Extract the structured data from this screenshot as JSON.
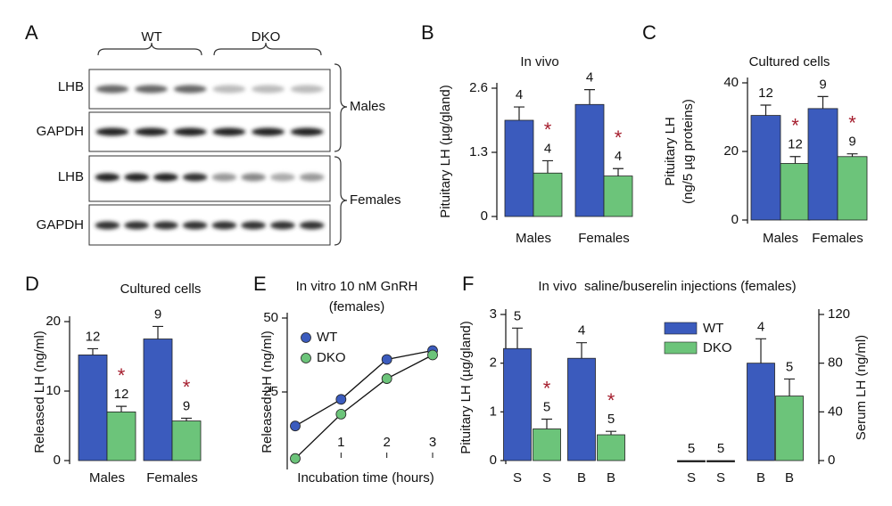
{
  "panel_labels": [
    "A",
    "B",
    "C",
    "D",
    "E",
    "F"
  ],
  "blot": {
    "groups": [
      "WT",
      "DKO"
    ],
    "rows": [
      "LHB",
      "GAPDH",
      "LHB",
      "GAPDH"
    ],
    "sexes": [
      "Males",
      "Females"
    ]
  },
  "chart_data": [
    {
      "type": "bar",
      "title": "In vivo",
      "y_label": "Pituitary LH (µg/gland)",
      "categories": [
        "Males",
        "Females"
      ],
      "ylim": [
        0,
        2.6
      ],
      "yticks": [
        0,
        1.3,
        2.6
      ],
      "series": [
        {
          "name": "WT",
          "color": "#3b5bbd",
          "values": [
            1.95,
            2.27
          ],
          "errors": [
            0.27,
            0.3
          ],
          "n": [
            4,
            4
          ],
          "marks": [
            null,
            null
          ]
        },
        {
          "name": "DKO",
          "color": "#6cc47a",
          "values": [
            0.88,
            0.82
          ],
          "errors": [
            0.25,
            0.15
          ],
          "n": [
            4,
            4
          ],
          "marks": [
            "*",
            "*"
          ]
        }
      ]
    },
    {
      "type": "bar",
      "title": "Cultured cells",
      "y_label": [
        "Pituitary LH",
        "(ng/5 µg proteins)"
      ],
      "categories": [
        "Males",
        "Females"
      ],
      "ylim": [
        0,
        40
      ],
      "yticks": [
        0,
        20,
        40
      ],
      "series": [
        {
          "name": "WT",
          "color": "#3b5bbd",
          "values": [
            30.5,
            32.5
          ],
          "errors": [
            3,
            3.5
          ],
          "n": [
            12,
            9
          ],
          "marks": [
            null,
            null
          ]
        },
        {
          "name": "DKO",
          "color": "#6cc47a",
          "values": [
            16.5,
            18.5
          ],
          "errors": [
            2,
            0.8
          ],
          "n": [
            12,
            9
          ],
          "marks": [
            "*",
            "*"
          ]
        }
      ]
    },
    {
      "type": "bar",
      "title": "Cultured cells",
      "y_label": "Released LH (ng/ml)",
      "categories": [
        "Males",
        "Females"
      ],
      "ylim": [
        0,
        20
      ],
      "yticks": [
        0,
        10,
        20
      ],
      "series": [
        {
          "name": "WT",
          "color": "#3b5bbd",
          "values": [
            15.2,
            17.5
          ],
          "errors": [
            0.9,
            1.8
          ],
          "n": [
            12,
            9
          ],
          "marks": [
            null,
            null
          ]
        },
        {
          "name": "DKO",
          "color": "#6cc47a",
          "values": [
            7,
            5.7
          ],
          "errors": [
            0.8,
            0.4
          ],
          "n": [
            12,
            9
          ],
          "marks": [
            "*",
            "*"
          ]
        }
      ]
    },
    {
      "type": "line",
      "title": [
        "In vitro 10 nM GnRH",
        "(females)"
      ],
      "x_label": "Incubation time (hours)",
      "y_label": "Released LH (ng/ml)",
      "x": [
        0,
        1,
        2,
        3
      ],
      "xlim": [
        0,
        3
      ],
      "xticks": [
        1,
        2,
        3
      ],
      "ylim": [
        0,
        50
      ],
      "yticks": [
        25,
        50
      ],
      "legend": "upper left",
      "series": [
        {
          "name": "WT",
          "color": "#3b5bbd",
          "values": [
            13.5,
            22.5,
            36,
            39
          ]
        },
        {
          "name": "DKO",
          "color": "#6cc47a",
          "values": [
            2.5,
            17.5,
            29.5,
            37.5
          ]
        }
      ]
    },
    {
      "type": "dual_bar",
      "title": "In vivo  saline/buserelin injections (females)",
      "y_label": "Pituitary LH (µg/gland)",
      "y2_label": "Serum LH (ng/ml)",
      "ylim": [
        0,
        3
      ],
      "yticks": [
        0,
        1,
        2,
        3
      ],
      "y2lim": [
        0,
        120
      ],
      "y2ticks": [
        0,
        40,
        80,
        120
      ],
      "legend": "upper center",
      "legend_entries": [
        {
          "name": "WT",
          "color": "#3b5bbd"
        },
        {
          "name": "DKO",
          "color": "#6cc47a"
        }
      ],
      "bars": [
        {
          "category": "S",
          "group": "WT",
          "axis": "y",
          "value": 2.3,
          "error": 0.42,
          "n": 5
        },
        {
          "category": "S",
          "group": "DKO",
          "axis": "y",
          "value": 0.65,
          "error": 0.2,
          "n": 5,
          "mark": "*"
        },
        {
          "category": "B",
          "group": "WT",
          "axis": "y",
          "value": 2.1,
          "error": 0.32,
          "n": 4
        },
        {
          "category": "B",
          "group": "DKO",
          "axis": "y",
          "value": 0.53,
          "error": 0.07,
          "n": 5,
          "mark": "*"
        },
        {
          "category": "S",
          "group": "WT",
          "axis": "y2",
          "value": 0,
          "n": 5
        },
        {
          "category": "S",
          "group": "DKO",
          "axis": "y2",
          "value": 0,
          "n": 5
        },
        {
          "category": "B",
          "group": "WT",
          "axis": "y2",
          "value": 80,
          "error": 20,
          "n": 4
        },
        {
          "category": "B",
          "group": "DKO",
          "axis": "y2",
          "value": 53,
          "error": 14,
          "n": 5
        }
      ]
    }
  ]
}
